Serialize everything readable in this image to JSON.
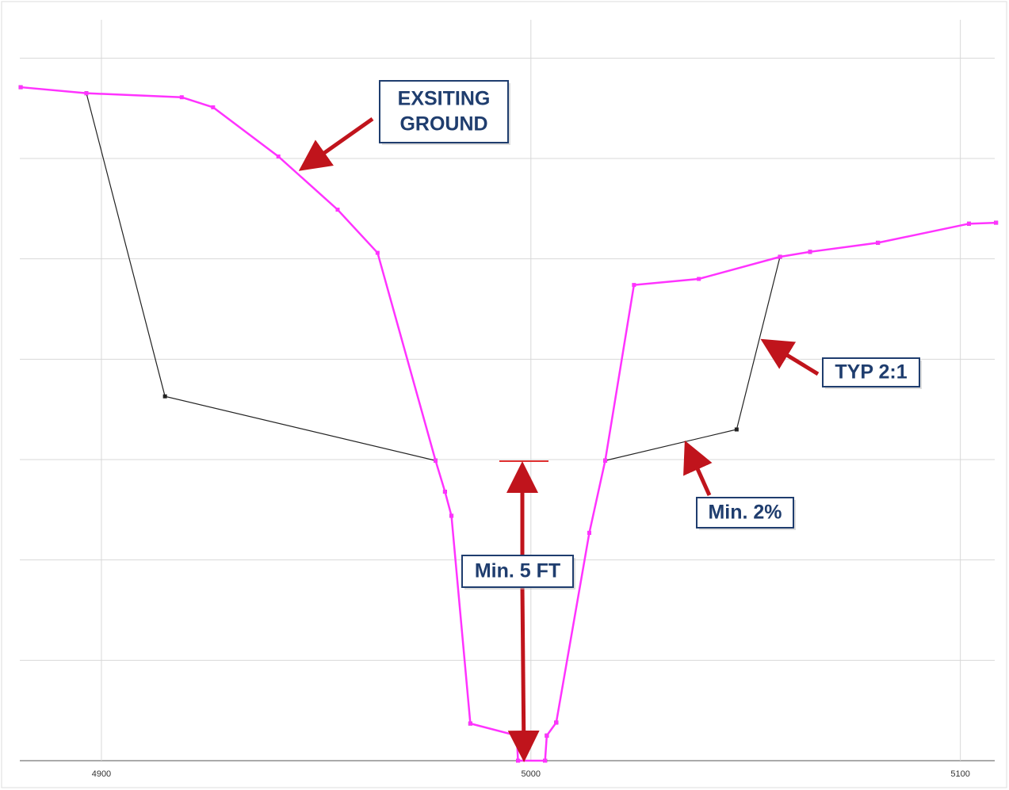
{
  "chart_data": {
    "type": "line",
    "xlim": [
      4881,
      5108
    ],
    "xticks": [
      4900,
      5000,
      5100
    ],
    "ylim": [
      0,
      7.5
    ],
    "yticks": [
      0,
      1,
      2,
      3,
      4,
      5,
      6,
      7
    ],
    "grid": true,
    "series": [
      {
        "name": "EXSITING GROUND",
        "color": "#ff33ff",
        "x": [
          4881.2,
          4896.5,
          4918.7,
          4926,
          4941.2,
          4955,
          4964.3,
          4977.8,
          4980,
          4981.5,
          4985.9,
          4996.7,
          4997,
          5003.3,
          5003.7,
          5005.9,
          5013.6,
          5017.3,
          5024,
          5039.1,
          5058,
          5065,
          5080.8,
          5102,
          5108.3
        ],
        "values": [
          6.71,
          6.65,
          6.61,
          6.51,
          6.02,
          5.49,
          5.06,
          2.99,
          2.68,
          2.44,
          0.37,
          0.25,
          0,
          0,
          0.25,
          0.38,
          2.27,
          2.99,
          4.74,
          4.8,
          5.02,
          5.07,
          5.16,
          5.35,
          5.36
        ]
      },
      {
        "color": "#222222",
        "x": [
          4881.2,
          4896.5,
          4914.8,
          4977.8,
          4980,
          4981.5,
          4985.9,
          4996.7,
          4997,
          5003.3,
          5003.7,
          5005.9,
          5013.6,
          5017.3,
          5047.9,
          5058,
          5065,
          5080.8,
          5102,
          5108.3
        ],
        "values": [
          6.71,
          6.65,
          3.63,
          2.99,
          2.68,
          2.44,
          0.37,
          0.25,
          0,
          0,
          0.25,
          0.38,
          2.27,
          2.99,
          3.3,
          5.02,
          5.07,
          5.16,
          5.35,
          5.36
        ]
      }
    ],
    "annotations": [
      {
        "lines": [
          "EXSITING",
          "GROUND"
        ]
      },
      {
        "lines": [
          "TYP 2:1"
        ]
      },
      {
        "lines": [
          "Min. 2%"
        ]
      },
      {
        "lines": [
          "Min. 5 FT"
        ]
      }
    ]
  }
}
